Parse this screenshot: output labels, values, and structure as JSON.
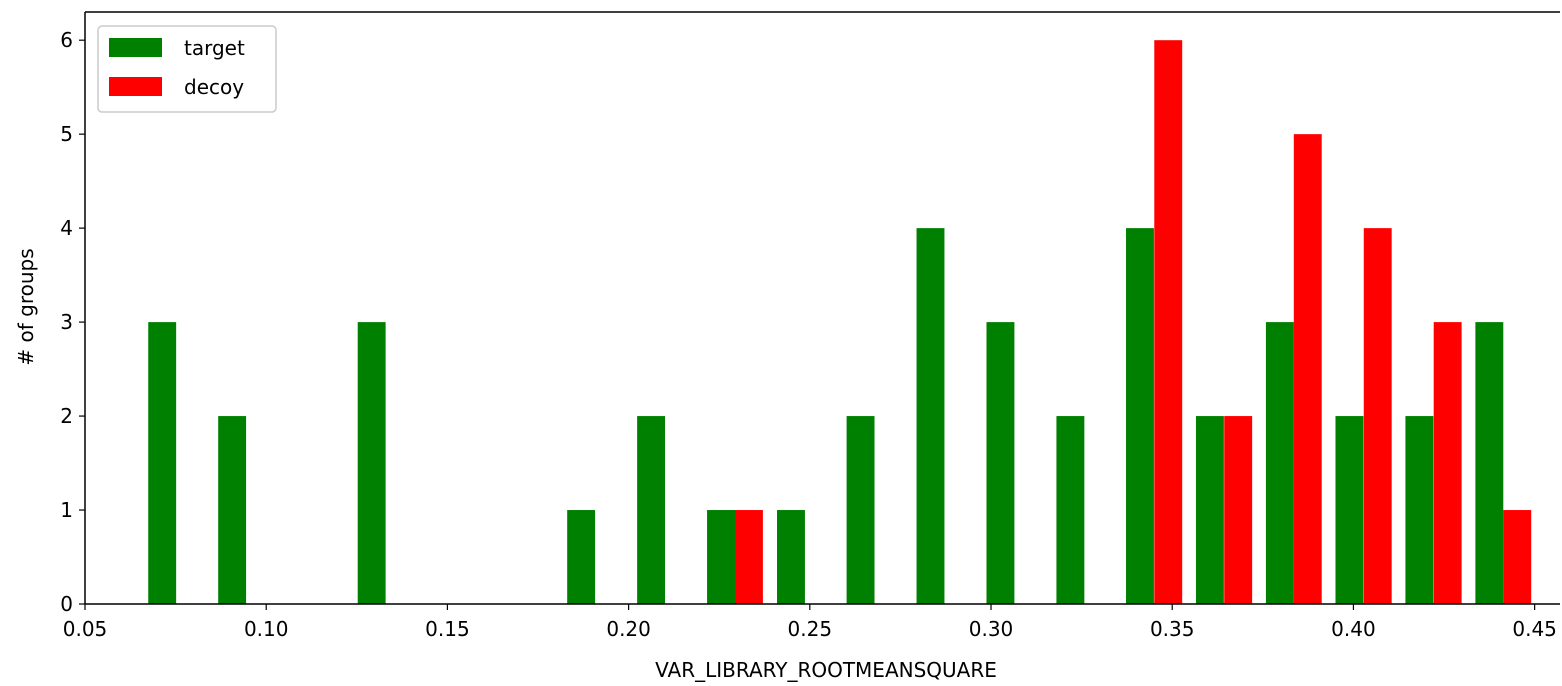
{
  "chart_data": {
    "type": "bar",
    "title": "",
    "xlabel": "VAR_LIBRARY_ROOTMEANSQUARE",
    "ylabel": "# of groups",
    "xlim": [
      0.05,
      0.457
    ],
    "ylim": [
      0,
      6.3
    ],
    "xticks": [
      0.05,
      0.1,
      0.15,
      0.2,
      0.25,
      0.3,
      0.35,
      0.4,
      0.45
    ],
    "xtick_labels": [
      "0.05",
      "0.10",
      "0.15",
      "0.20",
      "0.25",
      "0.30",
      "0.35",
      "0.40",
      "0.45"
    ],
    "yticks": [
      0,
      1,
      2,
      3,
      4,
      5,
      6
    ],
    "ytick_labels": [
      "0",
      "1",
      "2",
      "3",
      "4",
      "5",
      "6"
    ],
    "grid": false,
    "legend_position": "top-left",
    "series": [
      {
        "name": "target",
        "color": "#008000",
        "bars": [
          {
            "x": 0.0713,
            "value": 3
          },
          {
            "x": 0.0906,
            "value": 2
          },
          {
            "x": 0.1291,
            "value": 3
          },
          {
            "x": 0.1869,
            "value": 1
          },
          {
            "x": 0.2062,
            "value": 2
          },
          {
            "x": 0.2255,
            "value": 1
          },
          {
            "x": 0.2448,
            "value": 1
          },
          {
            "x": 0.264,
            "value": 2
          },
          {
            "x": 0.2833,
            "value": 4
          },
          {
            "x": 0.3026,
            "value": 3
          },
          {
            "x": 0.3219,
            "value": 2
          },
          {
            "x": 0.3411,
            "value": 4
          },
          {
            "x": 0.3604,
            "value": 2
          },
          {
            "x": 0.3797,
            "value": 3
          },
          {
            "x": 0.3989,
            "value": 2
          },
          {
            "x": 0.4182,
            "value": 2
          },
          {
            "x": 0.4375,
            "value": 3
          }
        ]
      },
      {
        "name": "decoy",
        "color": "#ff0000",
        "bars": [
          {
            "x": 0.2332,
            "value": 1
          },
          {
            "x": 0.3489,
            "value": 6
          },
          {
            "x": 0.3682,
            "value": 2
          },
          {
            "x": 0.3874,
            "value": 5
          },
          {
            "x": 0.4067,
            "value": 4
          },
          {
            "x": 0.426,
            "value": 3
          },
          {
            "x": 0.4452,
            "value": 1
          }
        ]
      }
    ],
    "bar_width": 0.0077
  }
}
